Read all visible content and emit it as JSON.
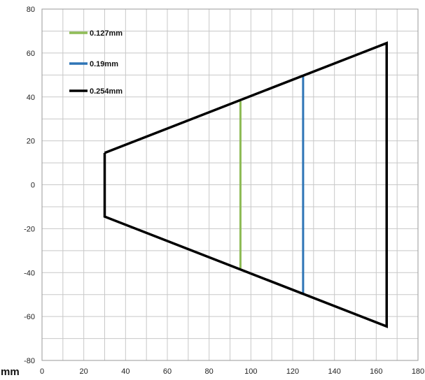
{
  "chart_data": {
    "type": "line",
    "title": "",
    "xlabel": "mm",
    "ylabel": "",
    "xlim": [
      0,
      180
    ],
    "ylim": [
      -80,
      80
    ],
    "x_ticks": [
      0,
      20,
      40,
      60,
      80,
      100,
      120,
      140,
      160,
      180
    ],
    "y_ticks": [
      80,
      60,
      40,
      20,
      0,
      -20,
      -40,
      -60,
      -80
    ],
    "grid": true,
    "legend_position": "top-left",
    "series": [
      {
        "name": "0.127mm",
        "color": "#8dbb55",
        "x": [
          95,
          95
        ],
        "y": [
          38,
          -38
        ]
      },
      {
        "name": "0.19mm",
        "color": "#2e75b6",
        "x": [
          125,
          125
        ],
        "y": [
          50,
          -50
        ]
      },
      {
        "name": "0.254mm",
        "color": "#000000",
        "x": [
          30,
          165,
          165,
          30,
          30
        ],
        "y": [
          14.5,
          64.5,
          -64.5,
          -14.5,
          14.5
        ]
      }
    ]
  }
}
